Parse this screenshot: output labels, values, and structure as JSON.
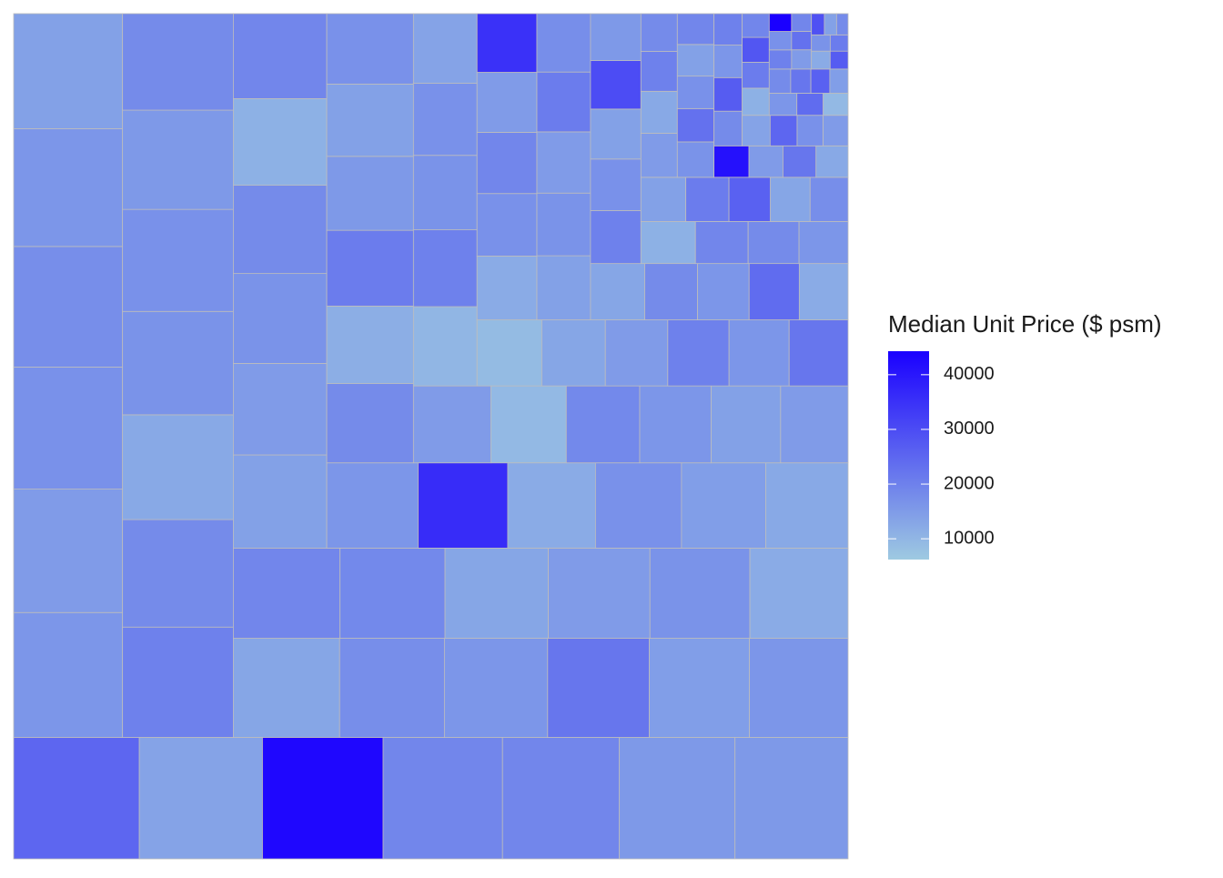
{
  "chart_data": {
    "type": "treemap",
    "values": [
      10,
      9.8,
      9.6,
      9.5,
      9.3,
      9.2,
      9.0,
      8.9,
      8.8,
      8.7,
      8.6,
      8.4,
      8.2,
      8.0,
      7.8,
      7.6,
      7.5,
      7.4,
      7.2,
      7.0,
      6.9,
      6.8,
      6.7,
      6.6,
      6.5,
      6.4,
      6.3,
      6.2,
      6.1,
      6.0,
      5.9,
      5.8,
      5.7,
      5.6,
      5.5,
      5.4,
      5.3,
      5.2,
      5.1,
      5.0,
      4.9,
      4.8,
      4.7,
      4.6,
      4.5,
      4.4,
      4.3,
      4.2,
      4.1,
      4.0,
      3.9,
      3.8,
      3.7,
      3.6,
      3.5,
      3.4,
      3.3,
      3.2,
      3.1,
      3.0,
      2.9,
      2.8,
      2.75,
      2.7,
      2.65,
      2.6,
      2.55,
      2.5,
      2.45,
      2.4,
      2.35,
      2.3,
      2.25,
      2.2,
      2.15,
      2.1,
      2.05,
      2.0,
      1.95,
      1.9,
      1.85,
      1.8,
      1.75,
      1.7,
      1.65,
      1.6,
      1.55,
      1.5,
      1.45,
      1.4,
      1.35,
      1.3,
      1.25,
      1.2,
      1.15,
      1.1,
      1.05,
      1.0,
      0.95,
      0.9,
      0.85,
      0.8,
      0.78,
      0.76,
      0.74,
      0.72,
      0.7,
      0.68,
      0.66,
      0.64,
      0.62,
      0.6,
      0.58,
      0.56,
      0.54,
      0.52,
      0.5,
      0.48,
      0.46,
      0.44,
      0.42,
      0.4,
      0.38,
      0.36,
      0.34,
      0.32,
      0.3,
      0.29,
      0.28,
      0.27,
      0.26,
      0.25,
      0.24,
      0.23,
      0.22,
      0.21,
      0.2,
      0.19,
      0.18,
      0.17,
      0.16
    ],
    "color_values": [
      25000,
      13500,
      43000,
      19000,
      19000,
      15500,
      15500,
      16000,
      15000,
      17000,
      17500,
      16000,
      14000,
      20000,
      18000,
      12500,
      16500,
      17000,
      15500,
      18000,
      13000,
      17500,
      16000,
      22000,
      14500,
      16000,
      19000,
      18500,
      13000,
      15000,
      16500,
      12000,
      14000,
      15000,
      16500,
      18000,
      11000,
      19000,
      16000,
      36000,
      12000,
      17000,
      14500,
      12500,
      18000,
      11500,
      21000,
      15500,
      14000,
      17000,
      15000,
      9500,
      18500,
      16000,
      14000,
      15000,
      10000,
      20000,
      16500,
      17000,
      13500,
      9000,
      13000,
      15000,
      20000,
      16000,
      22000,
      12000,
      17000,
      19000,
      15000,
      35000,
      14000,
      16500,
      15000,
      21000,
      17500,
      13000,
      18000,
      16000,
      24000,
      12000,
      20000,
      17000,
      14000,
      30000,
      15500,
      11000,
      19000,
      18000,
      16000,
      14000,
      21000,
      26000,
      13000,
      17500,
      15000,
      12500,
      20000,
      18000,
      16500,
      23000,
      17000,
      14000,
      19000,
      41000,
      15000,
      22000,
      12500,
      18000,
      27000,
      16000,
      20000,
      13500,
      25000,
      17000,
      15000,
      11000,
      21000,
      28000,
      19000,
      16000,
      24000,
      9500,
      18000,
      22000,
      26000,
      14500,
      20000,
      17000,
      45000,
      15000,
      23000,
      19000,
      12000,
      27000,
      16500,
      21000,
      29000,
      14000,
      18000
    ],
    "legend_title": "Median Unit Price ($ psm)",
    "colorlim": [
      6200,
      44300
    ],
    "colorticks": [
      10000,
      20000,
      30000,
      40000
    ],
    "low_color": "#9ecae1",
    "high_color": "#1a00ff",
    "border_color": "#bdbdbd"
  }
}
